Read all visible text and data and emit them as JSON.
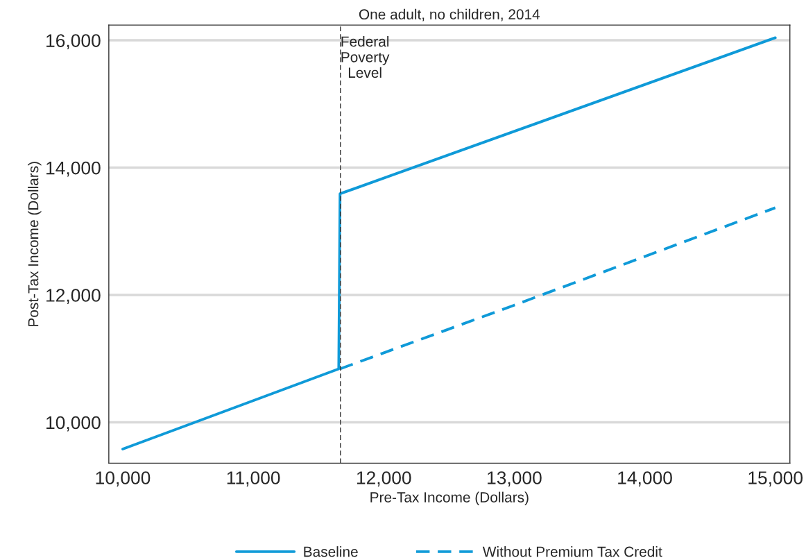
{
  "chart_data": {
    "type": "line",
    "title": "One adult, no children, 2014",
    "xlabel": "Pre-Tax Income (Dollars)",
    "ylabel": "Post-Tax Income (Dollars)",
    "series": [
      {
        "name": "Baseline",
        "color": "#0f9ad8",
        "line_style": "solid",
        "x": [
          10000,
          11655,
          11665,
          15000
        ],
        "values": [
          9580,
          10840,
          13590,
          16040
        ]
      },
      {
        "name": "Without Premium Tax Credit",
        "color": "#0f9ad8",
        "line_style": "dashed",
        "x": [
          11665,
          13000,
          15000
        ],
        "values": [
          10840,
          11840,
          13370
        ]
      }
    ],
    "xlim": [
      9893,
      15112
    ],
    "xticks": [
      {
        "value": 10000,
        "label": "10,000"
      },
      {
        "value": 11000,
        "label": "11,000"
      },
      {
        "value": 12000,
        "label": "12,000"
      },
      {
        "value": 13000,
        "label": "13,000"
      },
      {
        "value": 14000,
        "label": "14,000"
      },
      {
        "value": 15000,
        "label": "15,000"
      }
    ],
    "ylim": [
      9359,
      16239
    ],
    "yticks": [
      {
        "value": 10000,
        "label": "10,000"
      },
      {
        "value": 12000,
        "label": "12,000"
      },
      {
        "value": 14000,
        "label": "14,000"
      },
      {
        "value": 16000,
        "label": "16,000"
      }
    ],
    "ref_lines": [
      {
        "axis": "x",
        "value": 11668,
        "label": "Federal\nPoverty\nLevel",
        "color": "#333333",
        "line_style": "dashed"
      }
    ],
    "grid": "y",
    "legend": "bottom"
  }
}
